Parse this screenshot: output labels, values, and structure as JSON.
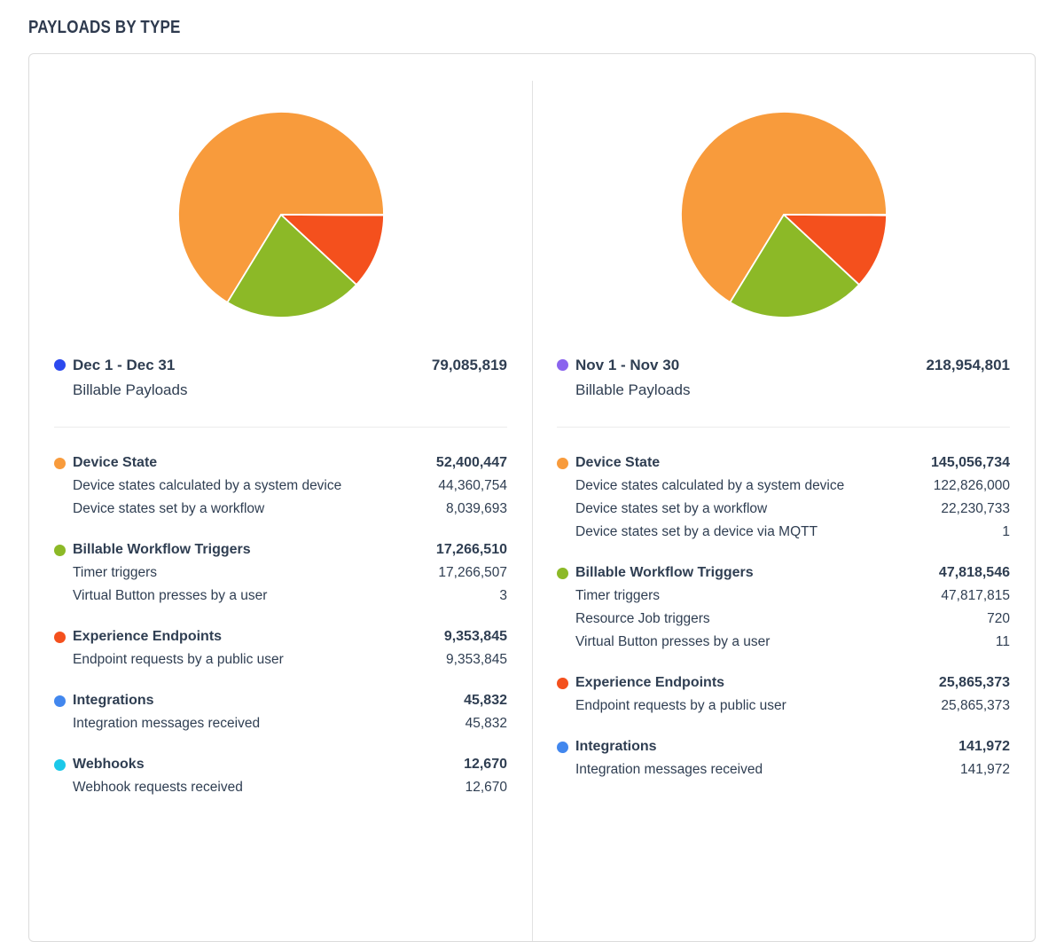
{
  "page": {
    "title": "PAYLOADS BY TYPE"
  },
  "colors": {
    "text": "#2f3e52",
    "card_border": "#dcdcdc",
    "divider": "#e2e2e2",
    "device_state": "#f89b3c",
    "billable_workflow_triggers": "#8cb927",
    "experience_endpoints": "#f4501d",
    "integrations": "#4287ee",
    "webhooks": "#1bc8e9",
    "period_dec_dot": "#2b49ee",
    "period_nov_dot": "#8a64ee"
  },
  "periods": [
    {
      "label": "Dec 1 - Dec 31",
      "subtitle": "Billable Payloads",
      "total": "79,085,819",
      "dot_color": "#2b49ee",
      "categories": [
        {
          "name": "Device State",
          "color": "#f89b3c",
          "value": "52,400,447",
          "rows": [
            {
              "label": "Device states calculated by a system device",
              "value": "44,360,754"
            },
            {
              "label": "Device states set by a workflow",
              "value": "8,039,693"
            }
          ]
        },
        {
          "name": "Billable Workflow Triggers",
          "color": "#8cb927",
          "value": "17,266,510",
          "rows": [
            {
              "label": "Timer triggers",
              "value": "17,266,507"
            },
            {
              "label": "Virtual Button presses by a user",
              "value": "3"
            }
          ]
        },
        {
          "name": "Experience Endpoints",
          "color": "#f4501d",
          "value": "9,353,845",
          "rows": [
            {
              "label": "Endpoint requests by a public user",
              "value": "9,353,845"
            }
          ]
        },
        {
          "name": "Integrations",
          "color": "#4287ee",
          "value": "45,832",
          "rows": [
            {
              "label": "Integration messages received",
              "value": "45,832"
            }
          ]
        },
        {
          "name": "Webhooks",
          "color": "#1bc8e9",
          "value": "12,670",
          "rows": [
            {
              "label": "Webhook requests received",
              "value": "12,670"
            }
          ]
        }
      ]
    },
    {
      "label": "Nov 1 - Nov 30",
      "subtitle": "Billable Payloads",
      "total": "218,954,801",
      "dot_color": "#8a64ee",
      "categories": [
        {
          "name": "Device State",
          "color": "#f89b3c",
          "value": "145,056,734",
          "rows": [
            {
              "label": "Device states calculated by a system device",
              "value": "122,826,000"
            },
            {
              "label": "Device states set by a workflow",
              "value": "22,230,733"
            },
            {
              "label": "Device states set by a device via MQTT",
              "value": "1"
            }
          ]
        },
        {
          "name": "Billable Workflow Triggers",
          "color": "#8cb927",
          "value": "47,818,546",
          "rows": [
            {
              "label": "Timer triggers",
              "value": "47,817,815"
            },
            {
              "label": "Resource Job triggers",
              "value": "720"
            },
            {
              "label": "Virtual Button presses by a user",
              "value": "11"
            }
          ]
        },
        {
          "name": "Experience Endpoints",
          "color": "#f4501d",
          "value": "25,865,373",
          "rows": [
            {
              "label": "Endpoint requests by a public user",
              "value": "25,865,373"
            }
          ]
        },
        {
          "name": "Integrations",
          "color": "#4287ee",
          "value": "141,972",
          "rows": [
            {
              "label": "Integration messages received",
              "value": "141,972"
            }
          ]
        }
      ]
    }
  ],
  "chart_data": [
    {
      "type": "pie",
      "title": "Dec 1 - Dec 31 Billable Payloads",
      "total": 79085819,
      "labels": [
        "Device State",
        "Billable Workflow Triggers",
        "Experience Endpoints",
        "Integrations",
        "Webhooks"
      ],
      "values": [
        52400447,
        17266510,
        9353845,
        45832,
        12670
      ],
      "colors": [
        "#f89b3c",
        "#8cb927",
        "#f4501d",
        "#4287ee",
        "#1bc8e9"
      ],
      "legend_position": "bottom",
      "start_angle_deg": 0,
      "direction": "counterclockwise"
    },
    {
      "type": "pie",
      "title": "Nov 1 - Nov 30 Billable Payloads",
      "total": 218954801,
      "labels": [
        "Device State",
        "Billable Workflow Triggers",
        "Experience Endpoints",
        "Integrations"
      ],
      "values": [
        145056734,
        47818546,
        25865373,
        141972
      ],
      "colors": [
        "#f89b3c",
        "#8cb927",
        "#f4501d",
        "#4287ee"
      ],
      "legend_position": "bottom",
      "start_angle_deg": 0,
      "direction": "counterclockwise"
    }
  ]
}
